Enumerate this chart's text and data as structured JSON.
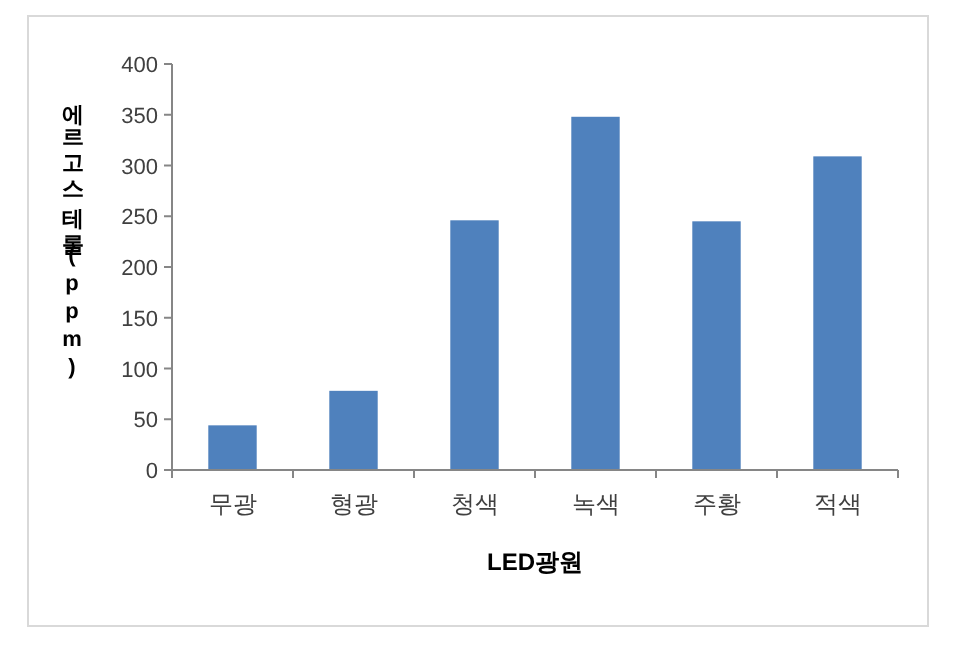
{
  "chart_data": {
    "type": "bar",
    "xlabel": "LED광원",
    "ylabel": "에르고스테롤(ppm)",
    "categories": [
      "무광",
      "형광",
      "청색",
      "녹색",
      "주황",
      "적색"
    ],
    "values": [
      44,
      78,
      246,
      348,
      245,
      309
    ],
    "color": "#4f81bd",
    "ylim": [
      0,
      400
    ],
    "yticks": [
      0,
      50,
      100,
      150,
      200,
      250,
      300,
      350,
      400
    ],
    "grid": false
  }
}
